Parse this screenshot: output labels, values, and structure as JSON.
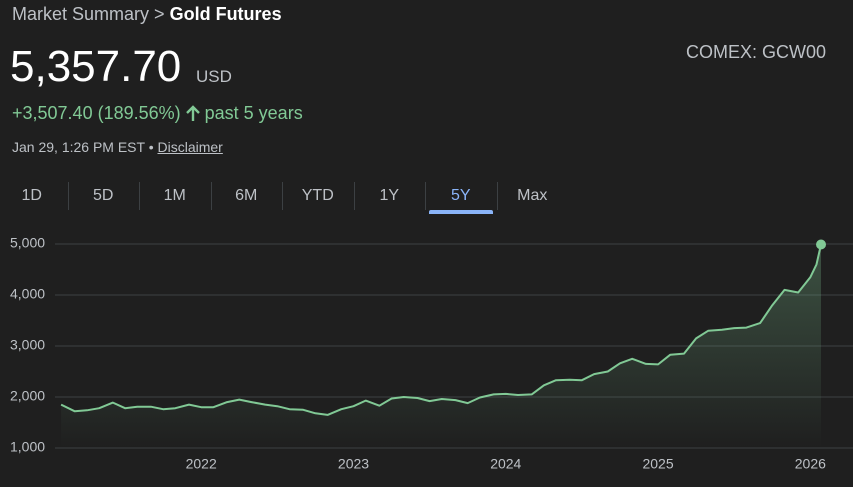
{
  "header": {
    "breadcrumb": [
      "Market Summary",
      "Gold Futures"
    ],
    "separator": ">",
    "price": "5,357.70",
    "currency": "USD",
    "exchange": "COMEX: GCW00",
    "change": "+3,507.40 (189.56%)",
    "period": "past 5 years",
    "timestamp": "Jan 29, 1:26 PM EST •",
    "disclaimer": "Disclaimer"
  },
  "tabs": {
    "items": [
      "1D",
      "5D",
      "1M",
      "6M",
      "YTD",
      "1Y",
      "5Y",
      "Max"
    ],
    "selected": "5Y"
  },
  "chart_data": {
    "type": "line",
    "color": "#81c995",
    "grid": true,
    "x": [
      2021.08,
      2021.17,
      2021.25,
      2021.33,
      2021.42,
      2021.5,
      2021.58,
      2021.67,
      2021.75,
      2021.83,
      2021.92,
      2022.0,
      2022.08,
      2022.17,
      2022.25,
      2022.33,
      2022.42,
      2022.5,
      2022.58,
      2022.67,
      2022.75,
      2022.83,
      2022.92,
      2023.0,
      2023.08,
      2023.17,
      2023.25,
      2023.33,
      2023.42,
      2023.5,
      2023.58,
      2023.67,
      2023.75,
      2023.83,
      2023.92,
      2024.0,
      2024.08,
      2024.17,
      2024.25,
      2024.33,
      2024.42,
      2024.5,
      2024.58,
      2024.67,
      2024.75,
      2024.83,
      2024.92,
      2025.0,
      2025.08,
      2025.17,
      2025.25,
      2025.33,
      2025.42,
      2025.5,
      2025.58,
      2025.67,
      2025.75,
      2025.83,
      2025.92,
      2026.0,
      2026.04,
      2026.07
    ],
    "values": [
      1850,
      1720,
      1740,
      1780,
      1890,
      1780,
      1810,
      1810,
      1760,
      1780,
      1850,
      1800,
      1800,
      1900,
      1950,
      1900,
      1850,
      1820,
      1760,
      1750,
      1680,
      1650,
      1760,
      1820,
      1930,
      1830,
      1970,
      2000,
      1980,
      1920,
      1960,
      1940,
      1880,
      1990,
      2050,
      2060,
      2040,
      2050,
      2230,
      2330,
      2340,
      2330,
      2450,
      2500,
      2660,
      2750,
      2650,
      2640,
      2830,
      2850,
      3150,
      3300,
      3320,
      3350,
      3360,
      3450,
      3800,
      4100,
      4050,
      4350,
      4600,
      4990
    ],
    "xlim": [
      2021.04,
      2026.28
    ],
    "xticks": [
      2022,
      2023,
      2024,
      2025,
      2026
    ],
    "ylim": [
      1000,
      5000
    ],
    "yticks": [
      {
        "value": 1000,
        "label": "1,000"
      },
      {
        "value": 2000,
        "label": "2,000"
      },
      {
        "value": 3000,
        "label": "3,000"
      },
      {
        "value": 4000,
        "label": "4,000"
      },
      {
        "value": 5000,
        "label": "5,000"
      }
    ]
  }
}
